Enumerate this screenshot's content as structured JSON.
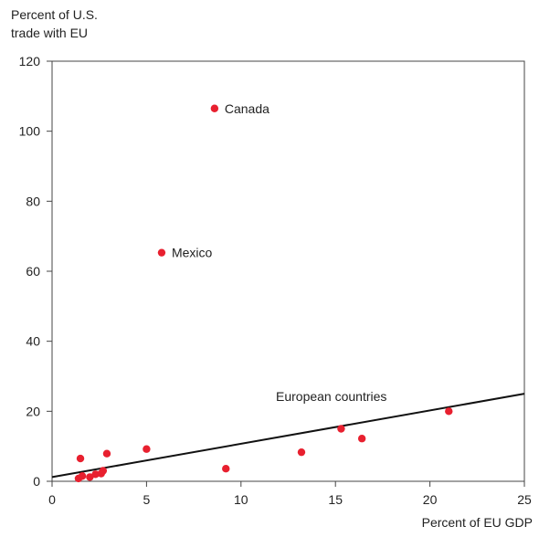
{
  "chart_data": {
    "type": "scatter",
    "ylabel_lines": [
      "Percent of U.S.",
      "trade with EU"
    ],
    "xlabel": "Percent of EU GDP",
    "xlim": [
      0,
      25
    ],
    "ylim": [
      0,
      120
    ],
    "x_ticks": [
      "0",
      "5",
      "10",
      "15",
      "20",
      "25"
    ],
    "y_ticks": [
      "0",
      "20",
      "40",
      "60",
      "80",
      "100",
      "120"
    ],
    "grid": false,
    "point_color": "#e8202f",
    "points": [
      {
        "x": 8.6,
        "y": 106.5,
        "label": "Canada"
      },
      {
        "x": 5.8,
        "y": 65.3,
        "label": "Mexico"
      },
      {
        "x": 1.5,
        "y": 6.5
      },
      {
        "x": 2.9,
        "y": 7.9
      },
      {
        "x": 5.0,
        "y": 9.2
      },
      {
        "x": 1.4,
        "y": 0.8
      },
      {
        "x": 1.6,
        "y": 1.5
      },
      {
        "x": 2.0,
        "y": 1.2
      },
      {
        "x": 2.3,
        "y": 2.0
      },
      {
        "x": 2.6,
        "y": 2.2
      },
      {
        "x": 2.7,
        "y": 3.0
      },
      {
        "x": 9.2,
        "y": 3.6
      },
      {
        "x": 13.2,
        "y": 8.3
      },
      {
        "x": 15.3,
        "y": 15.0
      },
      {
        "x": 16.4,
        "y": 12.2
      },
      {
        "x": 21.0,
        "y": 20.0
      }
    ],
    "trendline": {
      "x": [
        0,
        25
      ],
      "y": [
        1.2,
        25.0
      ]
    },
    "annotation": "European countries"
  }
}
